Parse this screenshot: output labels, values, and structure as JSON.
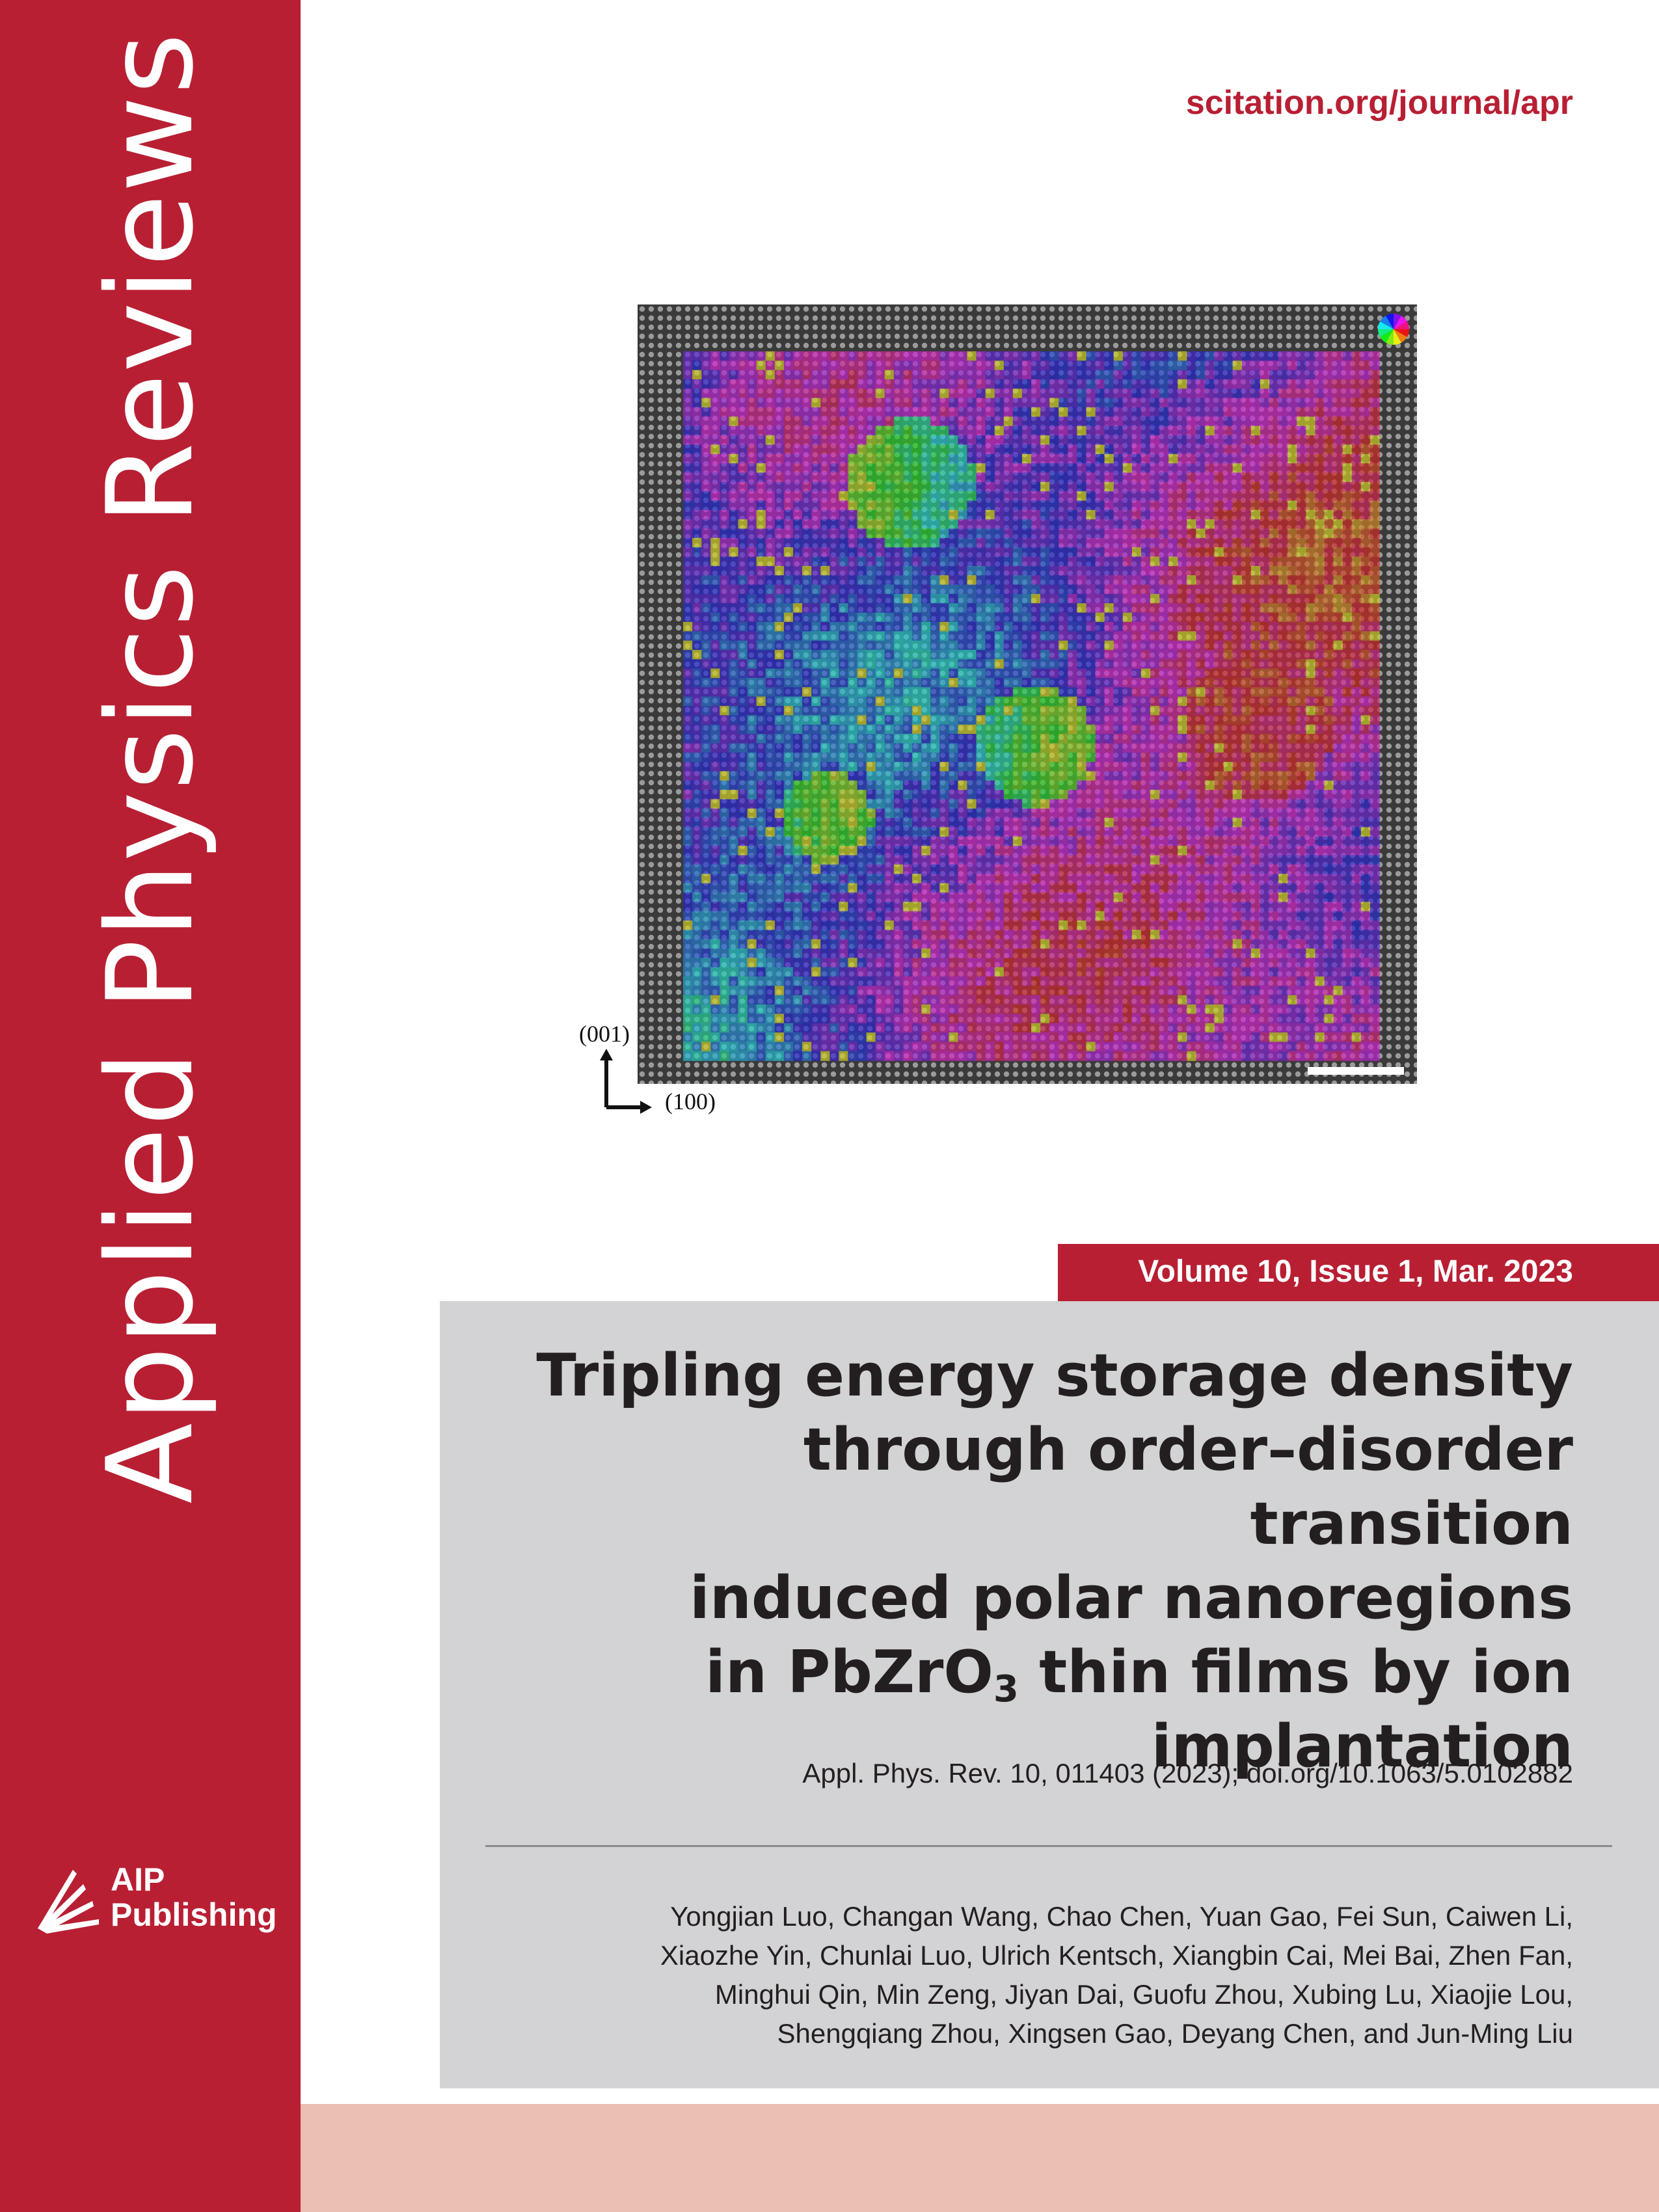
{
  "colors": {
    "brand_red": "#b81f33",
    "gray_panel": "#d3d2d4",
    "pink_band": "#ebbfb4"
  },
  "journal": {
    "title": "Applied Physics Reviews",
    "url": "scitation.org/journal/apr"
  },
  "publisher": {
    "logo_icon": "aip-publishing-logo-icon",
    "line1": "AIP",
    "line2": "Publishing"
  },
  "figure": {
    "axis_vertical": "(001)",
    "axis_horizontal": "(100)",
    "colorwheel_icon": "color-wheel-icon",
    "scale_bar_icon": "scale-bar-icon"
  },
  "issue": {
    "volume_line": "Volume 10, Issue 1, Mar. 2023"
  },
  "article": {
    "title_lines": [
      "Tripling energy storage density",
      "through order–disorder transition",
      "induced polar nanoregions"
    ],
    "title_line4_pre": "in PbZrO",
    "title_line4_sub": "3",
    "title_line4_post": " thin films by ion",
    "title_line5": "implantation",
    "citation": "Appl. Phys. Rev. 10, 011403 (2023); doi.org/10.1063/5.0102882",
    "authors_lines": [
      "Yongjian Luo, Changan Wang, Chao Chen, Yuan Gao, Fei Sun, Caiwen Li,",
      "Xiaozhe Yin, Chunlai Luo, Ulrich Kentsch, Xiangbin Cai, Mei Bai, Zhen Fan,",
      "Minghui Qin, Min Zeng, Jiyan Dai, Guofu Zhou, Xubing Lu, Xiaojie Lou,",
      "Shengqiang Zhou, Xingsen Gao, Deyang Chen, and Jun-Ming Liu"
    ]
  }
}
